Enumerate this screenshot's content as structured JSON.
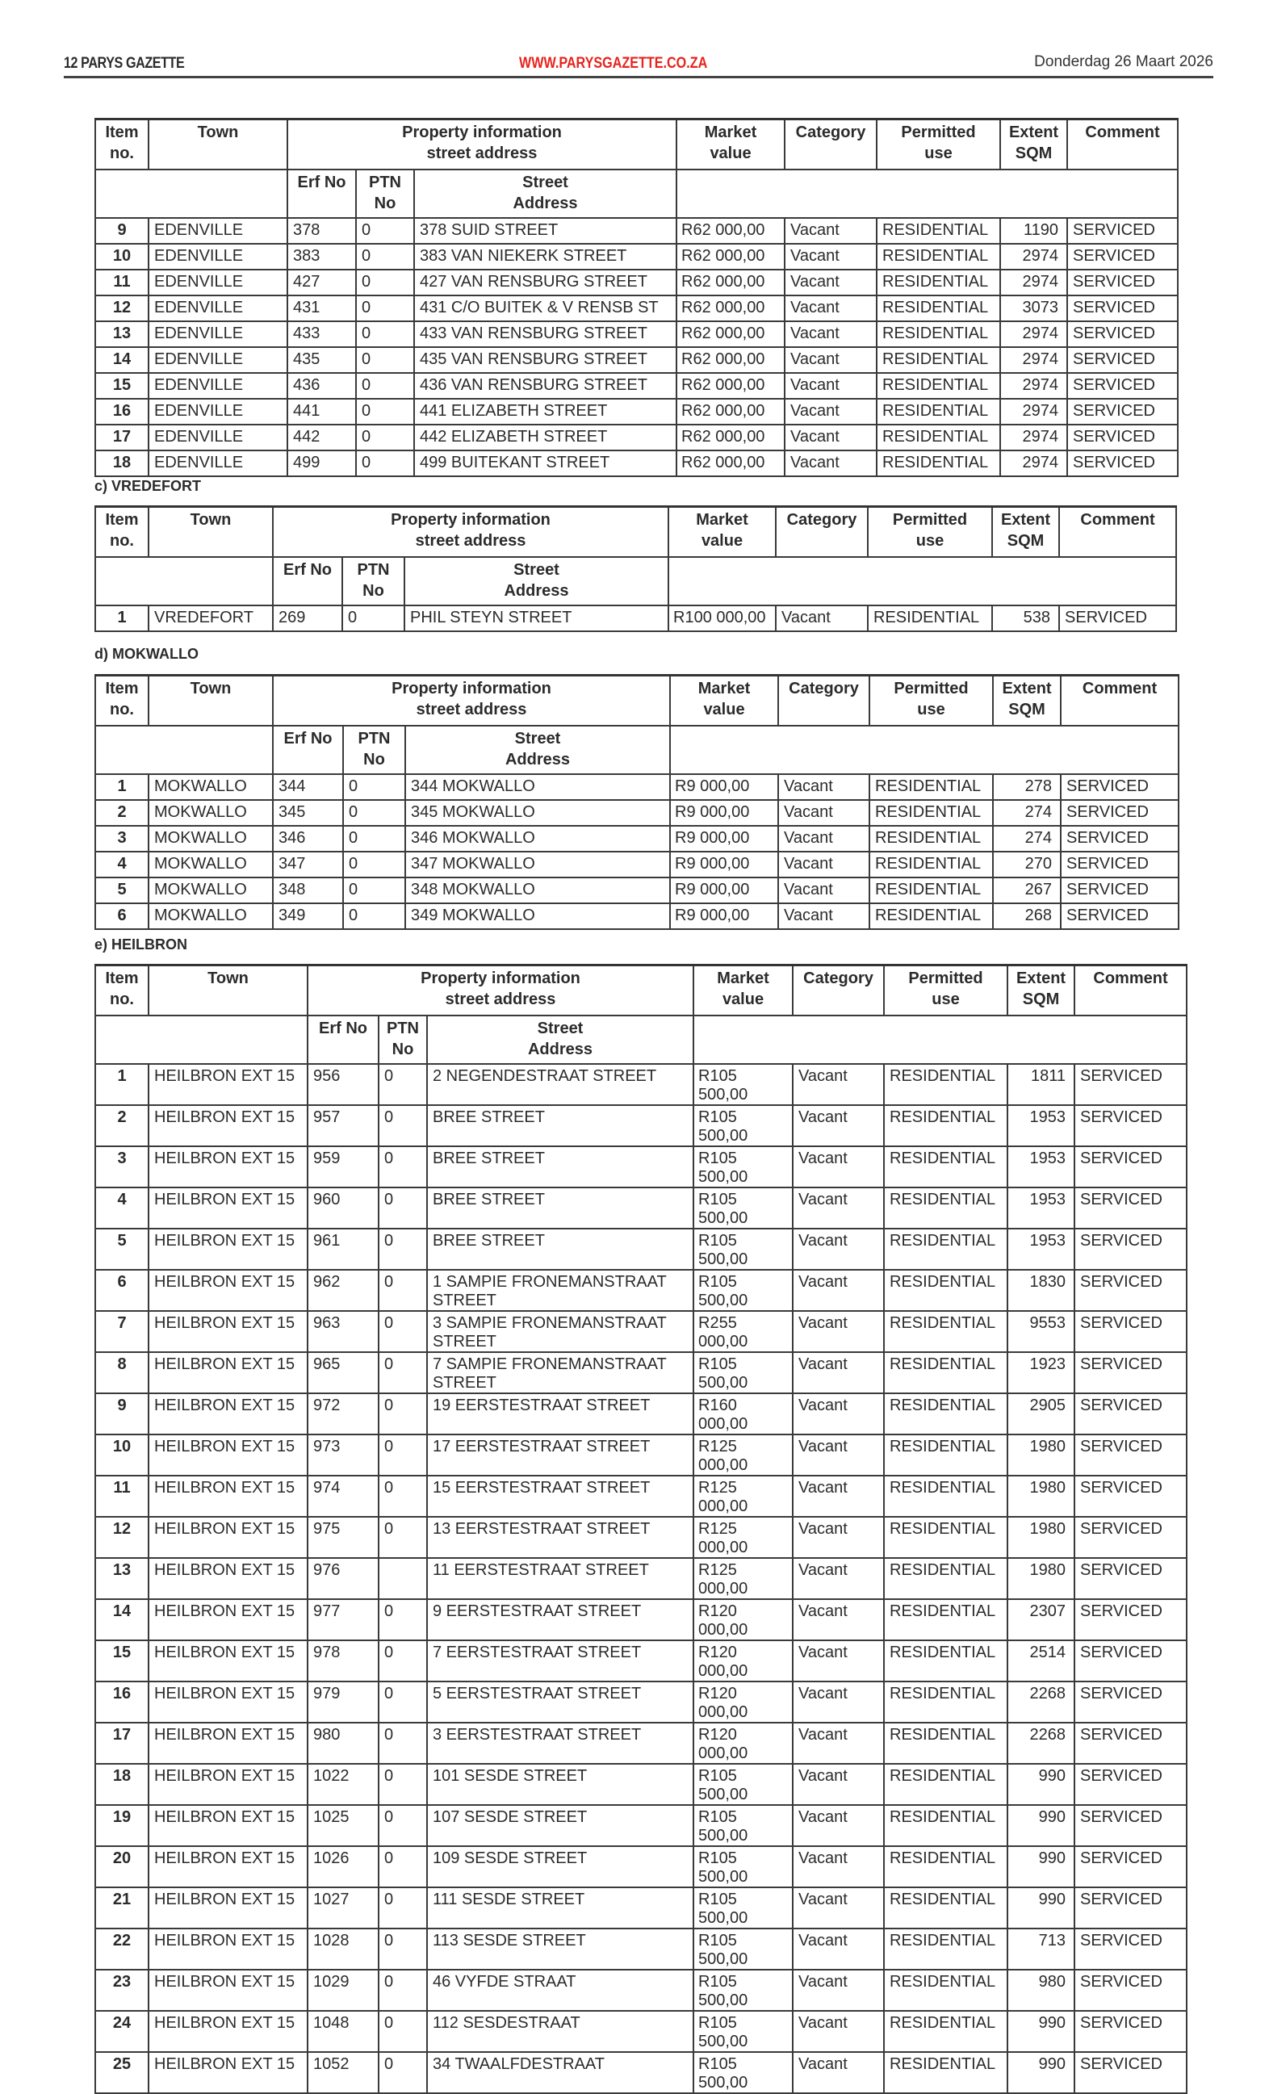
{
  "header": {
    "page": "12  PARYS GAZETTE",
    "url": "WWW.PARYSGAZETTE.CO.ZA",
    "date": "Donderdag 26 Maart 2026",
    "url_color": "#e8231c"
  },
  "columns": {
    "item": "Item\nno.",
    "town": "Town",
    "property": "Property information\nstreet address",
    "market": "Market\nvalue",
    "category": "Category",
    "permitted": "Permitted\nuse",
    "extent": "Extent\nSQM",
    "comment": "Comment",
    "erf": "Erf No",
    "ptn": "PTN\nNo",
    "street": "Street\nAddress"
  },
  "tables": [
    {
      "section": "",
      "rows": [
        [
          "9",
          "EDENVILLE",
          "378",
          "0",
          "378 SUID STREET",
          "R62 000,00",
          "Vacant",
          "RESIDENTIAL",
          "1190",
          "SERVICED"
        ],
        [
          "10",
          "EDENVILLE",
          "383",
          "0",
          "383 VAN NIEKERK STREET",
          "R62 000,00",
          "Vacant",
          "RESIDENTIAL",
          "2974",
          "SERVICED"
        ],
        [
          "11",
          "EDENVILLE",
          "427",
          "0",
          "427 VAN RENSBURG STREET",
          "R62 000,00",
          "Vacant",
          "RESIDENTIAL",
          "2974",
          "SERVICED"
        ],
        [
          "12",
          "EDENVILLE",
          "431",
          "0",
          "431 C/O BUITEK & V RENSB ST",
          "R62 000,00",
          "Vacant",
          "RESIDENTIAL",
          "3073",
          "SERVICED"
        ],
        [
          "13",
          "EDENVILLE",
          "433",
          "0",
          "433 VAN RENSBURG STREET",
          "R62 000,00",
          "Vacant",
          "RESIDENTIAL",
          "2974",
          "SERVICED"
        ],
        [
          "14",
          "EDENVILLE",
          "435",
          "0",
          "435 VAN RENSBURG STREET",
          "R62 000,00",
          "Vacant",
          "RESIDENTIAL",
          "2974",
          "SERVICED"
        ],
        [
          "15",
          "EDENVILLE",
          "436",
          "0",
          "436 VAN RENSBURG STREET",
          "R62 000,00",
          "Vacant",
          "RESIDENTIAL",
          "2974",
          "SERVICED"
        ],
        [
          "16",
          "EDENVILLE",
          "441",
          "0",
          "441 ELIZABETH STREET",
          "R62 000,00",
          "Vacant",
          "RESIDENTIAL",
          "2974",
          "SERVICED"
        ],
        [
          "17",
          "EDENVILLE",
          "442",
          "0",
          "442 ELIZABETH STREET",
          "R62 000,00",
          "Vacant",
          "RESIDENTIAL",
          "2974",
          "SERVICED"
        ],
        [
          "18",
          "EDENVILLE",
          "499",
          "0",
          "499 BUITEKANT STREET",
          "R62 000,00",
          "Vacant",
          "RESIDENTIAL",
          "2974",
          "SERVICED"
        ]
      ]
    },
    {
      "section": "c) VREDEFORT",
      "rows": [
        [
          "1",
          "VREDEFORT",
          "269",
          "0",
          "PHIL STEYN STREET",
          "R100 000,00",
          "Vacant",
          "RESIDENTIAL",
          "538",
          "SERVICED"
        ]
      ]
    },
    {
      "section": "d) MOKWALLO",
      "rows": [
        [
          "1",
          "MOKWALLO",
          "344",
          "0",
          "344 MOKWALLO",
          "R9 000,00",
          "Vacant",
          "RESIDENTIAL",
          "278",
          "SERVICED"
        ],
        [
          "2",
          "MOKWALLO",
          "345",
          "0",
          "345 MOKWALLO",
          "R9 000,00",
          "Vacant",
          "RESIDENTIAL",
          "274",
          "SERVICED"
        ],
        [
          "3",
          "MOKWALLO",
          "346",
          "0",
          "346 MOKWALLO",
          "R9 000,00",
          "Vacant",
          "RESIDENTIAL",
          "274",
          "SERVICED"
        ],
        [
          "4",
          "MOKWALLO",
          "347",
          "0",
          "347 MOKWALLO",
          "R9 000,00",
          "Vacant",
          "RESIDENTIAL",
          "270",
          "SERVICED"
        ],
        [
          "5",
          "MOKWALLO",
          "348",
          "0",
          "348 MOKWALLO",
          "R9 000,00",
          "Vacant",
          "RESIDENTIAL",
          "267",
          "SERVICED"
        ],
        [
          "6",
          "MOKWALLO",
          "349",
          "0",
          "349 MOKWALLO",
          "R9 000,00",
          "Vacant",
          "RESIDENTIAL",
          "268",
          "SERVICED"
        ]
      ]
    },
    {
      "section": "e) HEILBRON",
      "rows": [
        [
          "1",
          "HEILBRON EXT 15",
          "956",
          "0",
          "2 NEGENDESTRAAT STREET",
          "R105 500,00",
          "Vacant",
          "RESIDENTIAL",
          "1811",
          "SERVICED"
        ],
        [
          "2",
          "HEILBRON EXT 15",
          "957",
          "0",
          "BREE STREET",
          "R105 500,00",
          "Vacant",
          "RESIDENTIAL",
          "1953",
          "SERVICED"
        ],
        [
          "3",
          "HEILBRON EXT 15",
          "959",
          "0",
          "BREE STREET",
          "R105 500,00",
          "Vacant",
          "RESIDENTIAL",
          "1953",
          "SERVICED"
        ],
        [
          "4",
          "HEILBRON EXT 15",
          "960",
          "0",
          "BREE STREET",
          "R105 500,00",
          "Vacant",
          "RESIDENTIAL",
          "1953",
          "SERVICED"
        ],
        [
          "5",
          "HEILBRON EXT 15",
          "961",
          "0",
          "BREE STREET",
          "R105 500,00",
          "Vacant",
          "RESIDENTIAL",
          "1953",
          "SERVICED"
        ],
        [
          "6",
          "HEILBRON EXT 15",
          "962",
          "0",
          "1 SAMPIE FRONEMANSTRAAT STREET",
          "R105 500,00",
          "Vacant",
          "RESIDENTIAL",
          "1830",
          "SERVICED"
        ],
        [
          "7",
          "HEILBRON EXT 15",
          "963",
          "0",
          "3 SAMPIE FRONEMANSTRAAT STREET",
          "R255 000,00",
          "Vacant",
          "RESIDENTIAL",
          "9553",
          "SERVICED"
        ],
        [
          "8",
          "HEILBRON EXT 15",
          "965",
          "0",
          "7 SAMPIE FRONEMANSTRAAT STREET",
          "R105 500,00",
          "Vacant",
          "RESIDENTIAL",
          "1923",
          "SERVICED"
        ],
        [
          "9",
          "HEILBRON EXT 15",
          "972",
          "0",
          "19 EERSTESTRAAT STREET",
          "R160 000,00",
          "Vacant",
          "RESIDENTIAL",
          "2905",
          "SERVICED"
        ],
        [
          "10",
          "HEILBRON EXT 15",
          "973",
          "0",
          "17 EERSTESTRAAT STREET",
          "R125 000,00",
          "Vacant",
          "RESIDENTIAL",
          "1980",
          "SERVICED"
        ],
        [
          "11",
          "HEILBRON EXT 15",
          "974",
          "0",
          "15 EERSTESTRAAT STREET",
          "R125 000,00",
          "Vacant",
          "RESIDENTIAL",
          "1980",
          "SERVICED"
        ],
        [
          "12",
          "HEILBRON EXT 15",
          "975",
          "0",
          "13 EERSTESTRAAT STREET",
          "R125 000,00",
          "Vacant",
          "RESIDENTIAL",
          "1980",
          "SERVICED"
        ],
        [
          "13",
          "HEILBRON EXT 15",
          "976",
          "",
          "11 EERSTESTRAAT STREET",
          "R125 000,00",
          "Vacant",
          "RESIDENTIAL",
          "1980",
          "SERVICED"
        ],
        [
          "14",
          "HEILBRON EXT 15",
          "977",
          "0",
          "9 EERSTESTRAAT STREET",
          "R120 000,00",
          "Vacant",
          "RESIDENTIAL",
          "2307",
          "SERVICED"
        ],
        [
          "15",
          "HEILBRON EXT 15",
          "978",
          "0",
          "7 EERSTESTRAAT STREET",
          "R120 000,00",
          "Vacant",
          "RESIDENTIAL",
          "2514",
          "SERVICED"
        ],
        [
          "16",
          "HEILBRON EXT 15",
          "979",
          "0",
          "5 EERSTESTRAAT STREET",
          "R120 000,00",
          "Vacant",
          "RESIDENTIAL",
          "2268",
          "SERVICED"
        ],
        [
          "17",
          "HEILBRON EXT 15",
          "980",
          "0",
          "3 EERSTESTRAAT STREET",
          "R120 000,00",
          "Vacant",
          "RESIDENTIAL",
          "2268",
          "SERVICED"
        ],
        [
          "18",
          "HEILBRON EXT 15",
          "1022",
          "0",
          "101 SESDE STREET",
          "R105 500,00",
          "Vacant",
          "RESIDENTIAL",
          "990",
          "SERVICED"
        ],
        [
          "19",
          "HEILBRON EXT 15",
          "1025",
          "0",
          "107 SESDE STREET",
          "R105 500,00",
          "Vacant",
          "RESIDENTIAL",
          "990",
          "SERVICED"
        ],
        [
          "20",
          "HEILBRON EXT 15",
          "1026",
          "0",
          "109 SESDE STREET",
          "R105 500,00",
          "Vacant",
          "RESIDENTIAL",
          "990",
          "SERVICED"
        ],
        [
          "21",
          "HEILBRON EXT 15",
          "1027",
          "0",
          "111 SESDE STREET",
          "R105 500,00",
          "Vacant",
          "RESIDENTIAL",
          "990",
          "SERVICED"
        ],
        [
          "22",
          "HEILBRON EXT 15",
          "1028",
          "0",
          "113 SESDE STREET",
          "R105 500,00",
          "Vacant",
          "RESIDENTIAL",
          "713",
          "SERVICED"
        ],
        [
          "23",
          "HEILBRON EXT 15",
          "1029",
          "0",
          "46 VYFDE STRAAT",
          "R105 500,00",
          "Vacant",
          "RESIDENTIAL",
          "980",
          "SERVICED"
        ],
        [
          "24",
          "HEILBRON EXT 15",
          "1048",
          "0",
          "112 SESDESTRAAT",
          "R105 500,00",
          "Vacant",
          "RESIDENTIAL",
          "990",
          "SERVICED"
        ],
        [
          "25",
          "HEILBRON EXT 15",
          "1052",
          "0",
          "34 TWAALFDESTRAAT",
          "R105 500,00",
          "Vacant",
          "RESIDENTIAL",
          "990",
          "SERVICED"
        ]
      ]
    }
  ]
}
